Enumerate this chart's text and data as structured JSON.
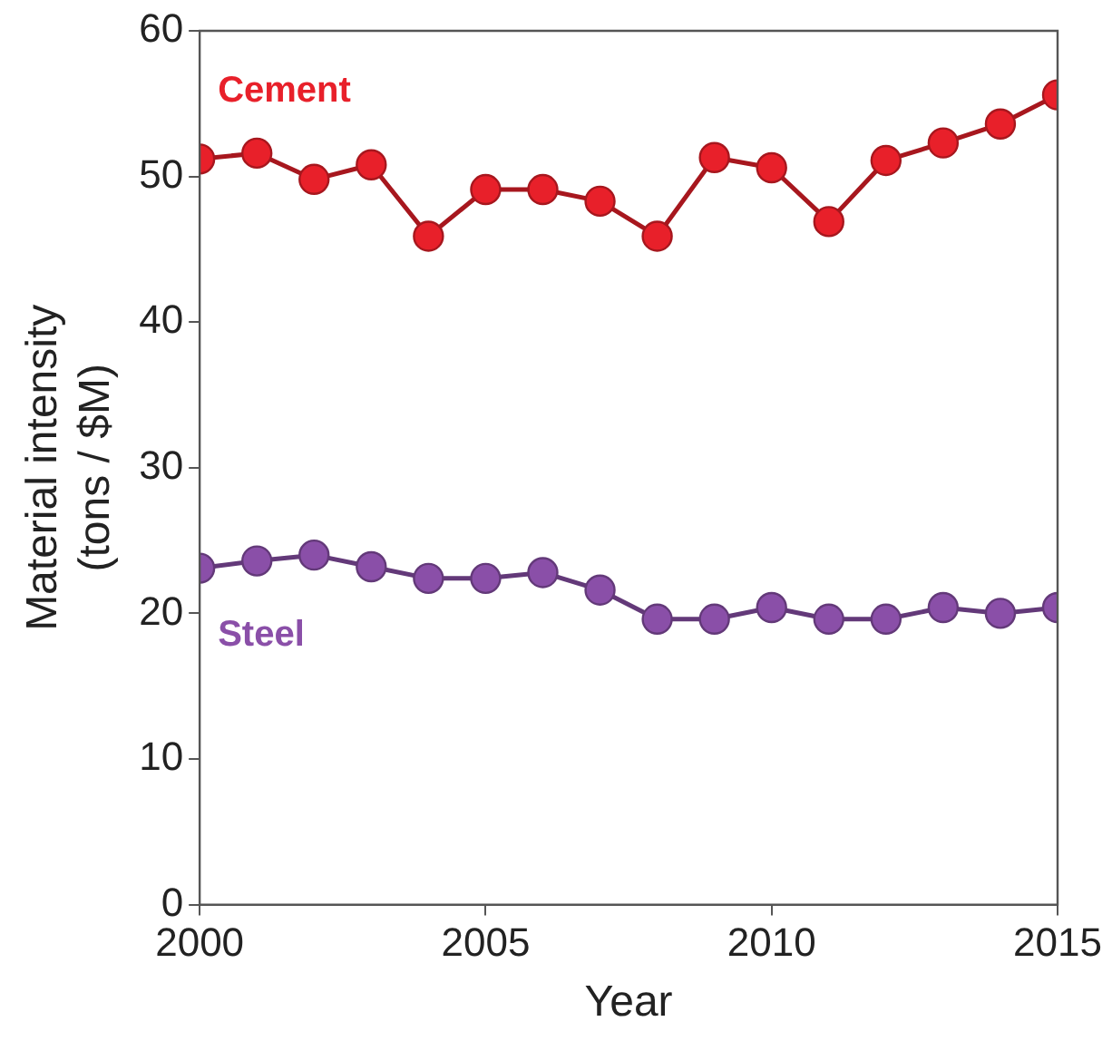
{
  "chart_data": {
    "type": "line",
    "xlabel": "Year",
    "ylabel": "Material intensity\n(tons / $M)",
    "x": [
      2000,
      2001,
      2002,
      2003,
      2004,
      2005,
      2006,
      2007,
      2008,
      2009,
      2010,
      2011,
      2012,
      2013,
      2014,
      2015
    ],
    "series": [
      {
        "name": "Cement",
        "color": "#e8202a",
        "values": [
          51.2,
          51.6,
          49.8,
          50.8,
          45.9,
          49.1,
          49.1,
          48.3,
          45.9,
          51.3,
          50.6,
          46.9,
          51.1,
          52.3,
          53.6,
          55.6
        ]
      },
      {
        "name": "Steel",
        "color": "#8a4fa8",
        "values": [
          23.1,
          23.6,
          24.0,
          23.2,
          22.4,
          22.4,
          22.8,
          21.6,
          19.6,
          19.6,
          20.4,
          19.6,
          19.6,
          20.4,
          20.0,
          20.4
        ]
      }
    ],
    "xlim": [
      2000,
      2015
    ],
    "xticks": [
      2000,
      2005,
      2010,
      2015
    ],
    "ylim": [
      0,
      60
    ],
    "yticks": [
      0,
      10,
      20,
      30,
      40,
      50,
      60
    ],
    "grid": false,
    "legend": false,
    "marker": "circle",
    "line_style": "solid"
  }
}
